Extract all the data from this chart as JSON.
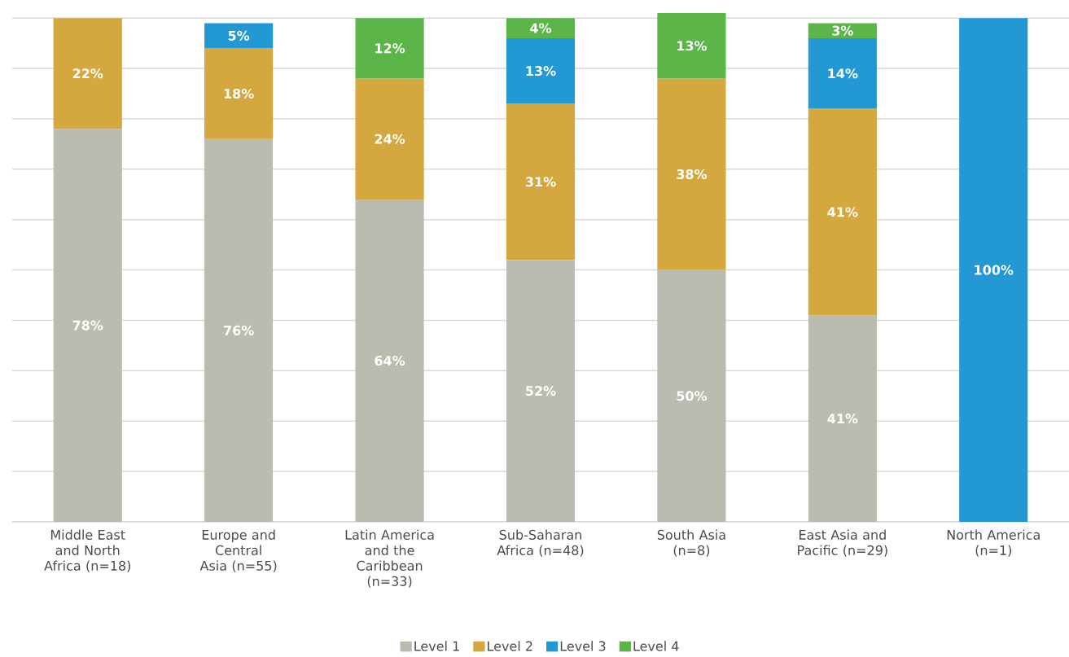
{
  "chart_data": {
    "type": "bar",
    "stacked": true,
    "categories": [
      "Middle East and North Africa (n=18)",
      "Europe and Central Asia (n=55)",
      "Latin America and the Caribbean (n=33)",
      "Sub-Saharan Africa (n=48)",
      "South Asia (n=8)",
      "East Asia and Pacific (n=29)",
      "North America (n=1)"
    ],
    "series": [
      {
        "name": "Level 1",
        "color": "#bbbbb0",
        "values": [
          78,
          76,
          64,
          52,
          50,
          41,
          null
        ],
        "value_labels": [
          "78%",
          "76%",
          "64%",
          "52%",
          "50%",
          "41%",
          null
        ]
      },
      {
        "name": "Level 2",
        "color": "#d5a73f",
        "values": [
          22,
          18,
          24,
          31,
          38,
          41,
          null
        ],
        "value_labels": [
          "22%",
          "18%",
          "24%",
          "31%",
          "38%",
          "41%",
          null
        ]
      },
      {
        "name": "Level 3",
        "color": "#2299d5",
        "values": [
          null,
          5,
          null,
          13,
          null,
          14,
          100
        ],
        "value_labels": [
          null,
          "5%",
          null,
          "13%",
          null,
          "14%",
          "100%"
        ]
      },
      {
        "name": "Level 4",
        "color": "#5bb548",
        "values": [
          null,
          null,
          12,
          4,
          13,
          3,
          null
        ],
        "value_labels": [
          null,
          null,
          "12%",
          "4%",
          "13%",
          "3%",
          null
        ]
      }
    ],
    "ylim": [
      0,
      101
    ],
    "yticks": [
      {
        "value": 0,
        "label": null
      },
      {
        "value": 10,
        "label": null
      },
      {
        "value": 20,
        "label": null
      },
      {
        "value": 30,
        "label": null
      },
      {
        "value": 40,
        "label": null
      },
      {
        "value": 50,
        "label": null
      },
      {
        "value": 60,
        "label": null
      },
      {
        "value": 70,
        "label": null
      },
      {
        "value": 80,
        "label": null
      },
      {
        "value": 90,
        "label": null
      },
      {
        "value": 100,
        "label": null
      }
    ],
    "tick_labels": "x",
    "grid": "y",
    "legend": "bottom"
  }
}
